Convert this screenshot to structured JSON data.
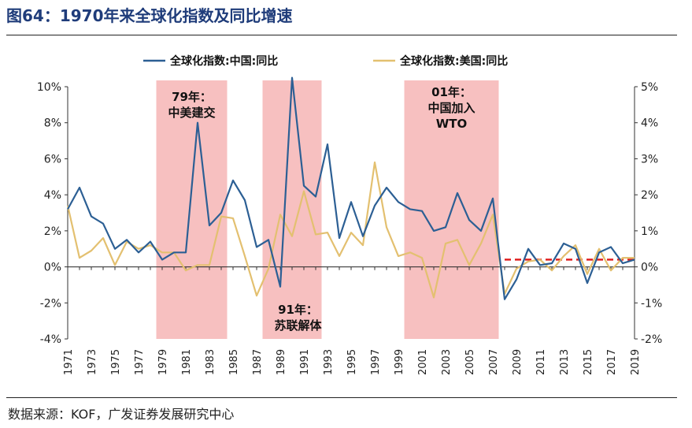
{
  "title": "图64：1970年来全球化指数及同比增速",
  "source": "数据来源：KOF，广发证券发展研究中心",
  "colors": {
    "china": "#2c5f94",
    "usa": "#e3c070",
    "shade": "#f7c0c0",
    "dashed": "#e02020"
  },
  "chart_data": {
    "type": "line",
    "x": [
      1971,
      1972,
      1973,
      1974,
      1975,
      1976,
      1977,
      1978,
      1979,
      1980,
      1981,
      1982,
      1983,
      1984,
      1985,
      1986,
      1987,
      1988,
      1989,
      1990,
      1991,
      1992,
      1993,
      1994,
      1995,
      1996,
      1997,
      1998,
      1999,
      2000,
      2001,
      2002,
      2003,
      2004,
      2005,
      2006,
      2007,
      2008,
      2009,
      2010,
      2011,
      2012,
      2013,
      2014,
      2015,
      2016,
      2017,
      2018,
      2019
    ],
    "x_tick_labels": [
      "1971",
      "1973",
      "1975",
      "1977",
      "1979",
      "1981",
      "1983",
      "1985",
      "1987",
      "1989",
      "1991",
      "1993",
      "1995",
      "1997",
      "1999",
      "2001",
      "2003",
      "2005",
      "2007",
      "2009",
      "2011",
      "2013",
      "2015",
      "2017",
      "2019"
    ],
    "y_left": {
      "range": [
        -4,
        10
      ],
      "ticks": [
        "10%",
        "8%",
        "6%",
        "4%",
        "2%",
        "0%",
        "-2%",
        "-4%"
      ]
    },
    "y_right": {
      "range": [
        -2,
        5
      ],
      "ticks": [
        "5%",
        "4%",
        "3%",
        "2%",
        "1%",
        "0%",
        "-1%",
        "-2%"
      ]
    },
    "series": [
      {
        "name": "全球化指数:中国:同比",
        "axis": "left",
        "values": [
          3.2,
          4.4,
          2.8,
          2.4,
          1.0,
          1.5,
          0.8,
          1.4,
          0.4,
          0.8,
          0.8,
          8.0,
          2.3,
          3.0,
          4.8,
          3.7,
          1.1,
          1.5,
          -1.1,
          10.5,
          4.5,
          3.9,
          6.8,
          1.6,
          3.6,
          1.7,
          3.4,
          4.4,
          3.6,
          3.2,
          3.1,
          2.0,
          2.2,
          4.1,
          2.6,
          2.0,
          3.8,
          -1.8,
          -0.7,
          1.0,
          0.1,
          0.2,
          1.3,
          1.0,
          -0.9,
          0.8,
          1.1,
          0.2,
          0.4
        ]
      },
      {
        "name": "全球化指数:美国:同比",
        "axis": "right",
        "values": [
          1.7,
          0.25,
          0.45,
          0.8,
          0.05,
          0.7,
          0.5,
          0.6,
          0.4,
          0.4,
          -0.1,
          0.05,
          0.05,
          1.4,
          1.35,
          0.3,
          -0.8,
          -0.05,
          1.45,
          0.85,
          2.1,
          0.9,
          0.95,
          0.3,
          0.95,
          0.6,
          2.9,
          1.1,
          0.3,
          0.4,
          0.25,
          -0.85,
          0.65,
          0.75,
          0.05,
          0.65,
          1.45,
          -0.75,
          -0.05,
          0.15,
          0.2,
          -0.1,
          0.3,
          0.6,
          -0.2,
          0.5,
          -0.1,
          0.25,
          0.25
        ]
      }
    ],
    "shaded_periods": [
      {
        "start": 1979,
        "end": 1984,
        "label_lines": [
          "79年：",
          "中美建交"
        ]
      },
      {
        "start": 1988,
        "end": 1992,
        "label_lines": [
          "91年：",
          "苏联解体"
        ]
      },
      {
        "start": 2000,
        "end": 2007,
        "label_lines": [
          "01年：",
          "中国加入",
          "WTO"
        ]
      }
    ],
    "reference_line": {
      "axis": "right",
      "value": 0.2,
      "from": 2008,
      "to": 2019,
      "style": "dashed"
    },
    "legend_position": "top"
  }
}
